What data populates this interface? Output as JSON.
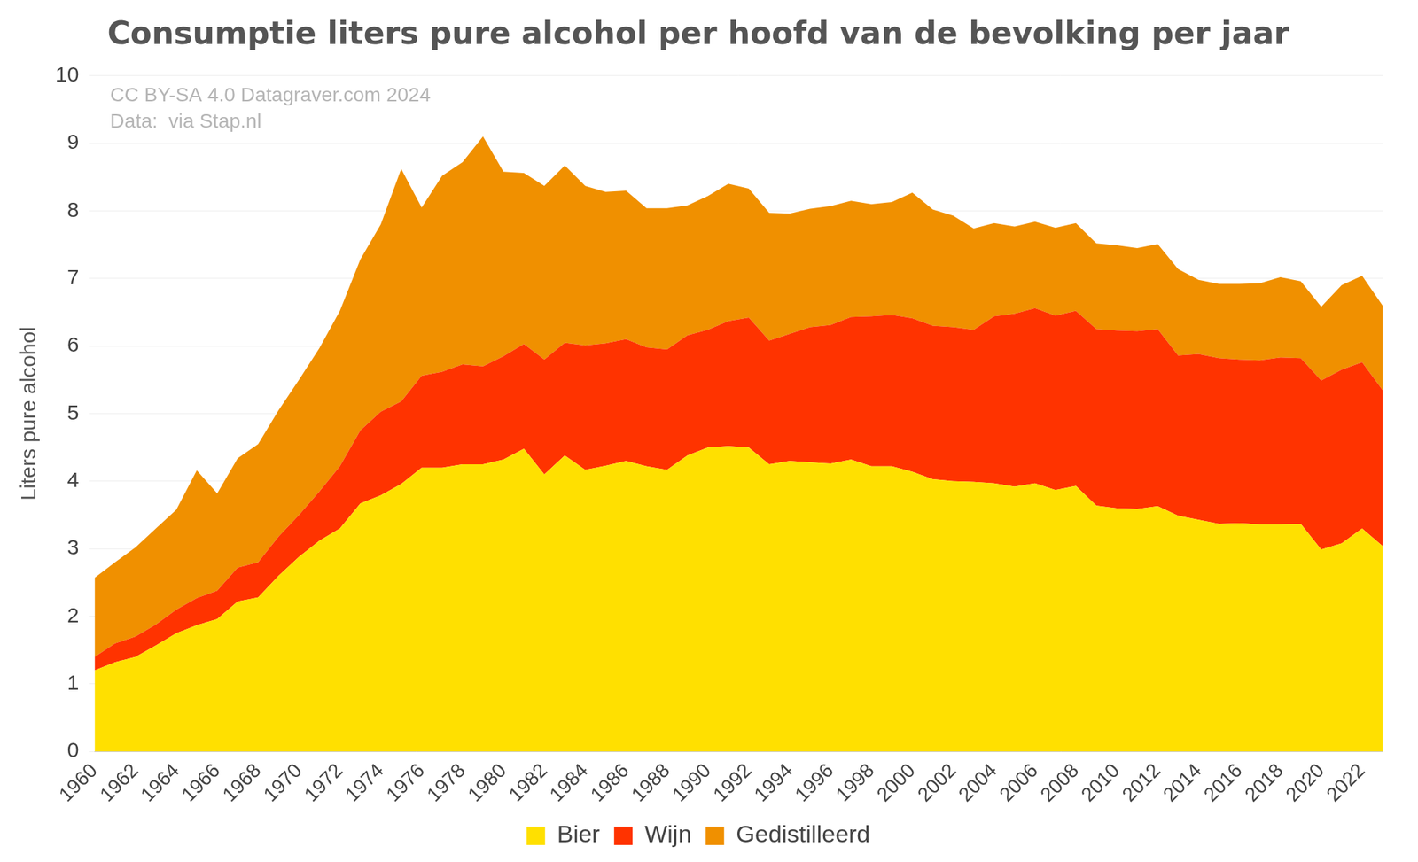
{
  "chart_data": {
    "type": "stacked_area",
    "title": "Consumptie liters pure alcohol per hoofd van de bevolking per jaar",
    "annotations": [
      "CC BY-SA 4.0 Datagraver.com 2024",
      "Data:  via Stap.nl"
    ],
    "y_label": "Liters pure alcohol",
    "categories": [
      "1960",
      null,
      "1962",
      null,
      "1964",
      null,
      "1966",
      null,
      "1968",
      null,
      "1970",
      null,
      "1972",
      null,
      "1974",
      null,
      "1976",
      null,
      "1978",
      null,
      "1980",
      null,
      "1982",
      null,
      "1984",
      null,
      "1986",
      null,
      "1988",
      null,
      "1990",
      null,
      "1992",
      null,
      "1994",
      null,
      "1996",
      null,
      "1998",
      null,
      "2000",
      null,
      "2002",
      null,
      "2004",
      null,
      "2006",
      null,
      "2008",
      null,
      "2010",
      null,
      "2012",
      null,
      "2014",
      null,
      "2016",
      null,
      "2018",
      null,
      "2020",
      null,
      "2022",
      null
    ],
    "series": [
      {
        "name": "Bier",
        "color": "#ffe000",
        "values": [
          1.2,
          1.32,
          1.4,
          1.57,
          1.75,
          1.87,
          1.96,
          2.22,
          2.28,
          2.6,
          2.88,
          3.12,
          3.3,
          3.67,
          3.79,
          3.96,
          4.2,
          4.2,
          4.25,
          4.25,
          4.32,
          4.48,
          4.1,
          4.38,
          4.17,
          4.23,
          4.3,
          4.22,
          4.17,
          4.38,
          4.5,
          4.52,
          4.5,
          4.25,
          4.3,
          4.28,
          4.26,
          4.32,
          4.22,
          4.22,
          4.14,
          4.03,
          4.0,
          3.99,
          3.97,
          3.92,
          3.97,
          3.87,
          3.93,
          3.64,
          3.6,
          3.59,
          3.63,
          3.49,
          3.43,
          3.37,
          3.38,
          3.36,
          3.36,
          3.37,
          2.99,
          3.08,
          3.3,
          3.04
        ]
      },
      {
        "name": "Wijn",
        "color": "#ff3300",
        "values": [
          0.2,
          0.28,
          0.3,
          0.31,
          0.35,
          0.4,
          0.42,
          0.5,
          0.52,
          0.58,
          0.62,
          0.73,
          0.92,
          1.08,
          1.24,
          1.22,
          1.36,
          1.42,
          1.48,
          1.45,
          1.53,
          1.55,
          1.7,
          1.67,
          1.84,
          1.81,
          1.8,
          1.76,
          1.78,
          1.78,
          1.74,
          1.85,
          1.92,
          1.83,
          1.88,
          2.0,
          2.05,
          2.11,
          2.22,
          2.24,
          2.27,
          2.27,
          2.28,
          2.25,
          2.47,
          2.56,
          2.59,
          2.58,
          2.59,
          2.61,
          2.63,
          2.63,
          2.62,
          2.37,
          2.45,
          2.45,
          2.42,
          2.43,
          2.47,
          2.45,
          2.5,
          2.57,
          2.46,
          2.31
        ]
      },
      {
        "name": "Gedistilleerd",
        "color": "#f09000",
        "values": [
          1.17,
          1.2,
          1.32,
          1.42,
          1.48,
          1.89,
          1.44,
          1.62,
          1.75,
          1.87,
          2.0,
          2.12,
          2.3,
          2.53,
          2.77,
          3.44,
          2.49,
          2.9,
          2.99,
          3.4,
          2.73,
          2.53,
          2.57,
          2.62,
          2.36,
          2.24,
          2.2,
          2.06,
          2.09,
          1.92,
          1.98,
          2.03,
          1.91,
          1.89,
          1.78,
          1.75,
          1.76,
          1.72,
          1.66,
          1.67,
          1.86,
          1.72,
          1.65,
          1.5,
          1.38,
          1.29,
          1.28,
          1.3,
          1.3,
          1.27,
          1.26,
          1.23,
          1.26,
          1.28,
          1.1,
          1.1,
          1.12,
          1.14,
          1.19,
          1.14,
          1.09,
          1.25,
          1.28,
          1.25
        ]
      }
    ],
    "stacked": true,
    "ylim": [
      0,
      10
    ],
    "yticks": [
      0,
      1,
      2,
      3,
      4,
      5,
      6,
      7,
      8,
      9,
      10
    ],
    "grid": true,
    "legend": "bottom"
  }
}
